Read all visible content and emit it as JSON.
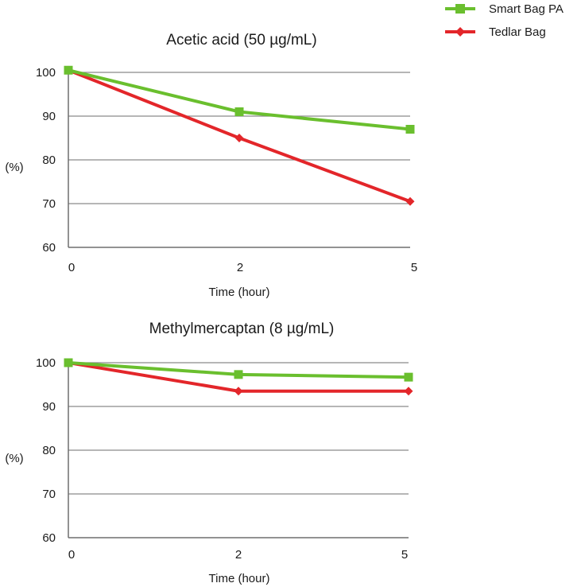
{
  "legend": {
    "items": [
      {
        "label": "Smart Bag PA",
        "color": "#6abf2e",
        "marker": "square"
      },
      {
        "label": "Tedlar Bag",
        "color": "#e3262a",
        "marker": "diamond"
      }
    ]
  },
  "chart_data": [
    {
      "type": "line",
      "title": "Acetic acid (50 µg/mL)",
      "xlabel": "Time (hour)",
      "ylabel": "(%)",
      "categories": [
        "0",
        "2",
        "5"
      ],
      "ylim": [
        60,
        100
      ],
      "yticks": [
        "60",
        "70",
        "80",
        "90",
        "100"
      ],
      "grid": true,
      "series": [
        {
          "name": "Smart Bag PA",
          "values": [
            100.5,
            91,
            87
          ]
        },
        {
          "name": "Tedlar Bag",
          "values": [
            100.5,
            85,
            70.5
          ]
        }
      ]
    },
    {
      "type": "line",
      "title": "Methylmercaptan (8 µg/mL)",
      "xlabel": "Time (hour)",
      "ylabel": "(%)",
      "categories": [
        "0",
        "2",
        "5"
      ],
      "ylim": [
        60,
        100
      ],
      "yticks": [
        "60",
        "70",
        "80",
        "90",
        "100"
      ],
      "grid": true,
      "series": [
        {
          "name": "Smart Bag PA",
          "values": [
            100,
            97.3,
            96.7
          ]
        },
        {
          "name": "Tedlar Bag",
          "values": [
            100,
            93.5,
            93.5
          ]
        }
      ]
    }
  ]
}
